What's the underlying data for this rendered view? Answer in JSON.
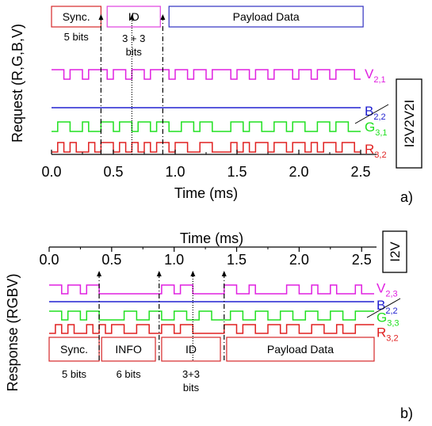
{
  "chart_data": [
    {
      "type": "line",
      "panel_label": "a)",
      "mode_label": "I2V2V2I",
      "xlabel": "Time (ms)",
      "ylabel": "Request (R,G,B,V)",
      "xlim": [
        0,
        2.5
      ],
      "xticks": [
        "0.0",
        "0.5",
        "1.0",
        "1.5",
        "2.0",
        "2.5"
      ],
      "xtick_values": [
        0,
        0.5,
        1.0,
        1.5,
        2.0,
        2.5
      ],
      "grid": false,
      "frame_segments": [
        {
          "label": "Sync.",
          "note": "5 bits",
          "start": 0.0,
          "end": 0.4,
          "color": "#d62728"
        },
        {
          "label": "ID",
          "note": "3 + 3 bits",
          "start": 0.45,
          "end": 0.88,
          "color": "#e040e0"
        },
        {
          "label": "Payload Data",
          "note": "",
          "start": 0.95,
          "end": 2.52,
          "color": "#3030c0"
        }
      ],
      "boundaries": [
        0.4,
        0.65,
        0.9
      ],
      "series": [
        {
          "name": "V",
          "sub": "2,1",
          "color": "#e020e0",
          "x": [
            0.0,
            0.1,
            0.1,
            0.15,
            0.15,
            0.25,
            0.25,
            0.3,
            0.3,
            0.45,
            0.45,
            0.5,
            0.5,
            0.6,
            0.6,
            0.65,
            0.65,
            0.75,
            0.75,
            0.8,
            0.8,
            0.95,
            0.95,
            1.0,
            1.0,
            1.1,
            1.1,
            1.15,
            1.15,
            1.25,
            1.25,
            1.3,
            1.3,
            1.45,
            1.45,
            1.5,
            1.5,
            1.6,
            1.6,
            1.65,
            1.65,
            1.75,
            1.75,
            1.8,
            1.8,
            1.95,
            1.95,
            2.0,
            2.0,
            2.1,
            2.1,
            2.15,
            2.15,
            2.25,
            2.25,
            2.3,
            2.3,
            2.45,
            2.45,
            2.5
          ],
          "y": [
            1,
            1,
            0,
            0,
            1,
            1,
            0,
            0,
            1,
            1,
            0,
            0,
            1,
            1,
            0,
            0,
            1,
            1,
            0,
            0,
            1,
            1,
            0,
            0,
            1,
            1,
            0,
            0,
            1,
            1,
            0,
            0,
            1,
            1,
            0,
            0,
            1,
            1,
            0,
            0,
            1,
            1,
            0,
            0,
            1,
            1,
            0,
            0,
            1,
            1,
            0,
            0,
            1,
            1,
            0,
            0,
            1,
            1,
            0,
            0
          ]
        },
        {
          "name": "B",
          "sub": "2,2",
          "color": "#2020d0",
          "x": [
            0.0,
            2.5
          ],
          "y": [
            0,
            0
          ]
        },
        {
          "name": "G",
          "sub": "3,1",
          "color": "#20e020",
          "x": [
            0.0,
            0.05,
            0.05,
            0.15,
            0.15,
            0.25,
            0.25,
            0.3,
            0.3,
            0.4,
            0.4,
            0.5,
            0.5,
            0.55,
            0.55,
            0.65,
            0.65,
            0.7,
            0.7,
            0.8,
            0.8,
            0.85,
            0.85,
            0.95,
            0.95,
            1.05,
            1.05,
            1.15,
            1.15,
            1.2,
            1.2,
            1.3,
            1.3,
            1.45,
            1.45,
            1.55,
            1.55,
            1.6,
            1.6,
            1.7,
            1.7,
            1.8,
            1.8,
            1.9,
            1.9,
            1.95,
            1.95,
            2.05,
            2.05,
            2.15,
            2.15,
            2.25,
            2.25,
            2.3,
            2.3,
            2.4,
            2.4,
            2.5
          ],
          "y": [
            0,
            0,
            1,
            1,
            0,
            0,
            1,
            1,
            0,
            0,
            1,
            1,
            0,
            0,
            1,
            1,
            0,
            0,
            1,
            1,
            0,
            0,
            1,
            1,
            0,
            0,
            1,
            1,
            0,
            0,
            1,
            1,
            0,
            0,
            1,
            1,
            0,
            0,
            1,
            1,
            0,
            0,
            1,
            1,
            0,
            0,
            1,
            1,
            0,
            0,
            1,
            1,
            0,
            0,
            1,
            1,
            0,
            0
          ]
        },
        {
          "name": "R",
          "sub": "3,2",
          "color": "#e02020",
          "x": [
            0.0,
            0.05,
            0.05,
            0.1,
            0.1,
            0.15,
            0.15,
            0.2,
            0.2,
            0.3,
            0.3,
            0.35,
            0.35,
            0.4,
            0.4,
            0.5,
            0.5,
            0.55,
            0.55,
            0.6,
            0.6,
            0.65,
            0.65,
            0.7,
            0.7,
            0.75,
            0.75,
            0.8,
            0.8,
            0.85,
            0.85,
            0.95,
            0.95,
            1.0,
            1.0,
            1.1,
            1.1,
            1.2,
            1.2,
            1.3,
            1.3,
            1.45,
            1.45,
            1.5,
            1.5,
            1.55,
            1.55,
            1.6,
            1.6,
            1.65,
            1.65,
            1.75,
            1.75,
            1.8,
            1.8,
            1.9,
            1.9,
            1.95,
            1.95,
            2.05,
            2.05,
            2.1,
            2.1,
            2.15,
            2.15,
            2.2,
            2.2,
            2.3,
            2.3,
            2.35,
            2.35,
            2.45,
            2.45,
            2.5
          ],
          "y": [
            0,
            0,
            1,
            1,
            0,
            0,
            1,
            1,
            0,
            0,
            1,
            1,
            0,
            0,
            1,
            1,
            0,
            0,
            1,
            1,
            0,
            0,
            1,
            1,
            0,
            0,
            1,
            1,
            0,
            0,
            1,
            1,
            0,
            0,
            1,
            1,
            0,
            0,
            1,
            1,
            0,
            0,
            1,
            1,
            0,
            0,
            1,
            1,
            0,
            0,
            1,
            1,
            0,
            0,
            1,
            1,
            0,
            0,
            1,
            1,
            0,
            0,
            1,
            1,
            0,
            0,
            1,
            1,
            0,
            0,
            1,
            1,
            0,
            0
          ]
        }
      ]
    },
    {
      "type": "line",
      "panel_label": "b)",
      "mode_label": "I2V",
      "xlabel": "Time (ms)",
      "xlabel_position": "top",
      "ylabel": "Response (RGBV)",
      "xlim": [
        0,
        2.6
      ],
      "xticks": [
        "0.0",
        "0.5",
        "1.0",
        "1.5",
        "2.0",
        "2.5"
      ],
      "xtick_values": [
        0,
        0.5,
        1.0,
        1.5,
        2.0,
        2.5
      ],
      "grid": false,
      "frame_segments": [
        {
          "label": "Sync.",
          "note": "5 bits",
          "start": 0.0,
          "end": 0.4,
          "color": "#d62728"
        },
        {
          "label": "INFO",
          "note": "6 bits",
          "start": 0.42,
          "end": 0.85,
          "color": "#d62728"
        },
        {
          "label": "ID",
          "note": "3+3 bits",
          "start": 0.9,
          "end": 1.37,
          "color": "#d62728"
        },
        {
          "label": "Payload Data",
          "note": "",
          "start": 1.42,
          "end": 2.6,
          "color": "#d62728"
        }
      ],
      "boundaries": [
        0.4,
        0.88,
        1.15,
        1.4
      ],
      "series": [
        {
          "name": "V",
          "sub": "2,3",
          "color": "#e020e0",
          "x": [
            0.0,
            0.1,
            0.1,
            0.15,
            0.15,
            0.25,
            0.25,
            0.3,
            0.3,
            0.4,
            0.4,
            0.5,
            0.5,
            0.9,
            0.9,
            1.0,
            1.0,
            1.05,
            1.05,
            1.15,
            1.15,
            1.4,
            1.4,
            1.5,
            1.5,
            1.6,
            1.6,
            1.65,
            1.65,
            1.9,
            1.9,
            2.0,
            2.0,
            2.1,
            2.1,
            2.15,
            2.15,
            2.25,
            2.25,
            2.3,
            2.3,
            2.45,
            2.45,
            2.5,
            2.5,
            2.6
          ],
          "y": [
            1,
            1,
            0,
            0,
            1,
            1,
            0,
            0,
            1,
            1,
            0,
            0,
            0,
            0,
            1,
            1,
            0,
            0,
            1,
            1,
            0,
            0,
            1,
            1,
            0,
            0,
            1,
            1,
            0,
            0,
            1,
            1,
            0,
            0,
            1,
            1,
            0,
            0,
            1,
            1,
            0,
            0,
            1,
            1,
            0,
            0
          ]
        },
        {
          "name": "B",
          "sub": "2,2",
          "color": "#2020d0",
          "x": [
            0.0,
            2.6
          ],
          "y": [
            0,
            0
          ]
        },
        {
          "name": "G",
          "sub": "3,3",
          "color": "#20e020",
          "x": [
            0.0,
            0.1,
            0.1,
            0.15,
            0.15,
            0.25,
            0.25,
            0.3,
            0.3,
            0.4,
            0.4,
            0.6,
            0.6,
            0.7,
            0.7,
            0.8,
            0.8,
            0.9,
            0.9,
            1.0,
            1.0,
            1.1,
            1.1,
            1.2,
            1.2,
            1.3,
            1.3,
            1.45,
            1.45,
            1.55,
            1.55,
            1.65,
            1.65,
            1.75,
            1.75,
            1.85,
            1.85,
            1.95,
            1.95,
            2.05,
            2.05,
            2.15,
            2.15,
            2.25,
            2.25,
            2.35,
            2.35,
            2.45,
            2.45,
            2.6
          ],
          "y": [
            1,
            1,
            0,
            0,
            1,
            1,
            0,
            0,
            1,
            1,
            0,
            0,
            1,
            1,
            0,
            0,
            1,
            1,
            0,
            0,
            1,
            1,
            0,
            0,
            1,
            1,
            0,
            0,
            1,
            1,
            0,
            0,
            1,
            1,
            0,
            0,
            1,
            1,
            0,
            0,
            1,
            1,
            0,
            0,
            1,
            1,
            0,
            0,
            1,
            1
          ]
        },
        {
          "name": "R",
          "sub": "3,2",
          "color": "#e02020",
          "x": [
            0.0,
            0.05,
            0.05,
            0.1,
            0.1,
            0.15,
            0.15,
            0.2,
            0.2,
            0.3,
            0.3,
            0.35,
            0.35,
            0.4,
            0.4,
            0.45,
            0.45,
            0.5,
            0.5,
            0.6,
            0.6,
            0.7,
            0.7,
            0.8,
            0.8,
            0.9,
            0.9,
            1.0,
            1.0,
            1.05,
            1.05,
            1.15,
            1.15,
            1.4,
            1.4,
            1.5,
            1.5,
            1.55,
            1.55,
            1.65,
            1.65,
            1.75,
            1.75,
            1.85,
            1.85,
            1.9,
            1.9,
            2.0,
            2.0,
            2.1,
            2.1,
            2.2,
            2.2,
            2.3,
            2.3,
            2.35,
            2.35,
            2.45,
            2.45,
            2.6
          ],
          "y": [
            0,
            0,
            1,
            1,
            0,
            0,
            1,
            1,
            0,
            0,
            1,
            1,
            0,
            0,
            1,
            1,
            0,
            0,
            1,
            1,
            0,
            0,
            1,
            1,
            0,
            0,
            1,
            1,
            0,
            0,
            1,
            1,
            0,
            0,
            1,
            1,
            0,
            0,
            1,
            1,
            0,
            0,
            1,
            1,
            0,
            0,
            1,
            1,
            0,
            0,
            1,
            1,
            0,
            0,
            1,
            1,
            0,
            0,
            1,
            1
          ]
        }
      ]
    }
  ]
}
